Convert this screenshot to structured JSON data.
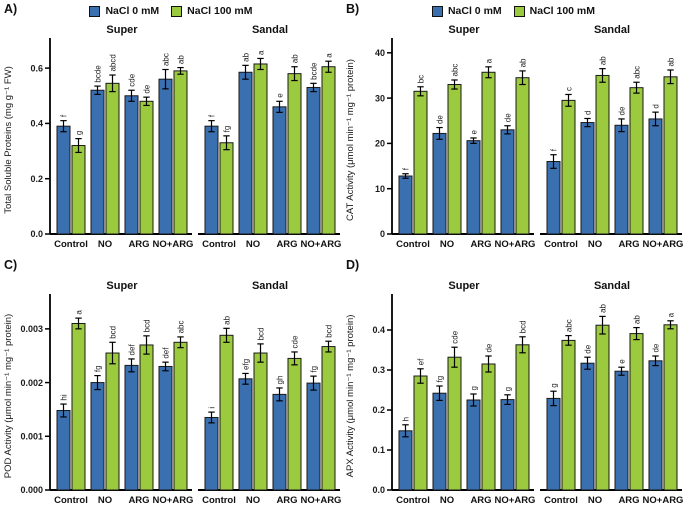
{
  "colors": {
    "nacl0": "#3a6fb0",
    "nacl100": "#9bca3e",
    "bar_border": "#1a1a1a",
    "axis": "#000000",
    "text": "#1a1a1a"
  },
  "legend": {
    "items": [
      {
        "label": "NaCl 0 mM",
        "color_key": "nacl0"
      },
      {
        "label": "NaCl 100 mM",
        "color_key": "nacl100"
      }
    ]
  },
  "chart_data": [
    {
      "panel_label": "A)",
      "type": "bar",
      "ylabel": "Total Soluble Proteins (mg g⁻¹ FW)",
      "ylim": [
        0,
        0.68
      ],
      "yticks": [
        0,
        0.2,
        0.4,
        0.6
      ],
      "ytick_labels": [
        "0.0",
        "0.2",
        "0.4",
        "0.6"
      ],
      "categories": [
        "Control",
        "NO",
        "ARG",
        "NO+ARG"
      ],
      "facets": [
        {
          "name": "Super",
          "series": [
            {
              "name": "NaCl 0 mM",
              "color_key": "nacl0",
              "values": [
                0.39,
                0.52,
                0.5,
                0.56
              ],
              "errors": [
                0.02,
                0.015,
                0.02,
                0.035
              ],
              "sig_labels": [
                "f",
                "bcde",
                "cde",
                "abc"
              ]
            },
            {
              "name": "NaCl 100 mM",
              "color_key": "nacl100",
              "values": [
                0.32,
                0.545,
                0.48,
                0.59
              ],
              "errors": [
                0.025,
                0.03,
                0.015,
                0.012
              ],
              "sig_labels": [
                "g",
                "abcd",
                "de",
                "ab"
              ]
            }
          ]
        },
        {
          "name": "Sandal",
          "series": [
            {
              "name": "NaCl 0 mM",
              "color_key": "nacl0",
              "values": [
                0.39,
                0.585,
                0.46,
                0.53
              ],
              "errors": [
                0.02,
                0.025,
                0.02,
                0.015
              ],
              "sig_labels": [
                "f",
                "ab",
                "e",
                "bcde"
              ]
            },
            {
              "name": "NaCl 100 mM",
              "color_key": "nacl100",
              "values": [
                0.33,
                0.615,
                0.58,
                0.605
              ],
              "errors": [
                0.025,
                0.02,
                0.025,
                0.02
              ],
              "sig_labels": [
                "fg",
                "a",
                "ab",
                "a"
              ]
            }
          ]
        }
      ]
    },
    {
      "panel_label": "B)",
      "type": "bar",
      "ylabel": "CAT Activity (μmol min⁻¹ mg⁻¹ protein)",
      "ylim": [
        0,
        41.5
      ],
      "yticks": [
        0,
        10,
        20,
        30,
        40
      ],
      "ytick_labels": [
        "0",
        "10",
        "20",
        "30",
        "40"
      ],
      "categories": [
        "Control",
        "NO",
        "ARG",
        "NO+ARG"
      ],
      "facets": [
        {
          "name": "Super",
          "series": [
            {
              "name": "NaCl 0 mM",
              "color_key": "nacl0",
              "values": [
                12.8,
                22.2,
                20.6,
                23.0
              ],
              "errors": [
                0.5,
                1.3,
                0.6,
                0.9
              ],
              "sig_labels": [
                "f",
                "de",
                "e",
                "de"
              ]
            },
            {
              "name": "NaCl 100 mM",
              "color_key": "nacl100",
              "values": [
                31.5,
                33.0,
                35.7,
                34.5
              ],
              "errors": [
                1.0,
                1.0,
                1.2,
                1.5
              ],
              "sig_labels": [
                "bc",
                "abc",
                "a",
                "ab"
              ]
            }
          ]
        },
        {
          "name": "Sandal",
          "series": [
            {
              "name": "NaCl 0 mM",
              "color_key": "nacl0",
              "values": [
                16.0,
                24.6,
                24.0,
                25.4
              ],
              "errors": [
                1.5,
                0.9,
                1.4,
                1.5
              ],
              "sig_labels": [
                "f",
                "d",
                "de",
                "d"
              ]
            },
            {
              "name": "NaCl 100 mM",
              "color_key": "nacl100",
              "values": [
                29.5,
                35.0,
                32.3,
                34.7
              ],
              "errors": [
                1.3,
                1.5,
                1.2,
                1.5
              ],
              "sig_labels": [
                "c",
                "ab",
                "abc",
                "ab"
              ]
            }
          ]
        }
      ]
    },
    {
      "panel_label": "C)",
      "type": "bar",
      "ylabel": "POD Activity (μmol min⁻¹ mg⁻¹ protein)",
      "ylim": [
        0,
        0.0035
      ],
      "yticks": [
        0,
        0.001,
        0.002,
        0.003
      ],
      "ytick_labels": [
        "0.000",
        "0.001",
        "0.002",
        "0.003"
      ],
      "categories": [
        "Control",
        "NO",
        "ARG",
        "NO+ARG"
      ],
      "facets": [
        {
          "name": "Super",
          "series": [
            {
              "name": "NaCl 0 mM",
              "color_key": "nacl0",
              "values": [
                0.00148,
                0.002,
                0.00232,
                0.0023
              ],
              "errors": [
                0.00012,
                0.00013,
                0.00012,
                8e-05
              ],
              "sig_labels": [
                "hi",
                "fg",
                "def",
                "def"
              ]
            },
            {
              "name": "NaCl 100 mM",
              "color_key": "nacl100",
              "values": [
                0.0031,
                0.00255,
                0.0027,
                0.00275
              ],
              "errors": [
                0.0001,
                0.0002,
                0.00017,
                0.0001
              ],
              "sig_labels": [
                "a",
                "bcd",
                "bcd",
                "abc"
              ]
            }
          ]
        },
        {
          "name": "Sandal",
          "series": [
            {
              "name": "NaCl 0 mM",
              "color_key": "nacl0",
              "values": [
                0.00135,
                0.00207,
                0.00178,
                0.00199
              ],
              "errors": [
                0.0001,
                0.0001,
                0.00012,
                0.00013
              ],
              "sig_labels": [
                "i",
                "efg",
                "gh",
                "fg"
              ]
            },
            {
              "name": "NaCl 100 mM",
              "color_key": "nacl100",
              "values": [
                0.00288,
                0.00255,
                0.00245,
                0.00267
              ],
              "errors": [
                0.00013,
                0.00017,
                0.00012,
                0.0001
              ],
              "sig_labels": [
                "ab",
                "bcd",
                "cde",
                "bcd"
              ]
            }
          ]
        }
      ]
    },
    {
      "panel_label": "D)",
      "type": "bar",
      "ylabel": "APX Activity (μmol min⁻¹ mg⁻¹ protein)",
      "ylim": [
        0,
        0.47
      ],
      "yticks": [
        0,
        0.1,
        0.2,
        0.3,
        0.4
      ],
      "ytick_labels": [
        "0.0",
        "0.1",
        "0.2",
        "0.3",
        "0.4"
      ],
      "categories": [
        "Control",
        "NO",
        "ARG",
        "NO+ARG"
      ],
      "facets": [
        {
          "name": "Super",
          "series": [
            {
              "name": "NaCl 0 mM",
              "color_key": "nacl0",
              "values": [
                0.148,
                0.242,
                0.225,
                0.226
              ],
              "errors": [
                0.015,
                0.018,
                0.015,
                0.012
              ],
              "sig_labels": [
                "h",
                "fg",
                "g",
                "g"
              ]
            },
            {
              "name": "NaCl 100 mM",
              "color_key": "nacl100",
              "values": [
                0.285,
                0.332,
                0.315,
                0.363
              ],
              "errors": [
                0.018,
                0.025,
                0.02,
                0.02
              ],
              "sig_labels": [
                "ef",
                "cde",
                "de",
                "bcd"
              ]
            }
          ]
        },
        {
          "name": "Sandal",
          "series": [
            {
              "name": "NaCl 0 mM",
              "color_key": "nacl0",
              "values": [
                0.229,
                0.317,
                0.297,
                0.323
              ],
              "errors": [
                0.018,
                0.015,
                0.01,
                0.012
              ],
              "sig_labels": [
                "g",
                "de",
                "e",
                "de"
              ]
            },
            {
              "name": "NaCl 100 mM",
              "color_key": "nacl100",
              "values": [
                0.374,
                0.412,
                0.391,
                0.413
              ],
              "errors": [
                0.012,
                0.022,
                0.015,
                0.01
              ],
              "sig_labels": [
                "abc",
                "ab",
                "ab",
                "a"
              ]
            }
          ]
        }
      ]
    }
  ]
}
